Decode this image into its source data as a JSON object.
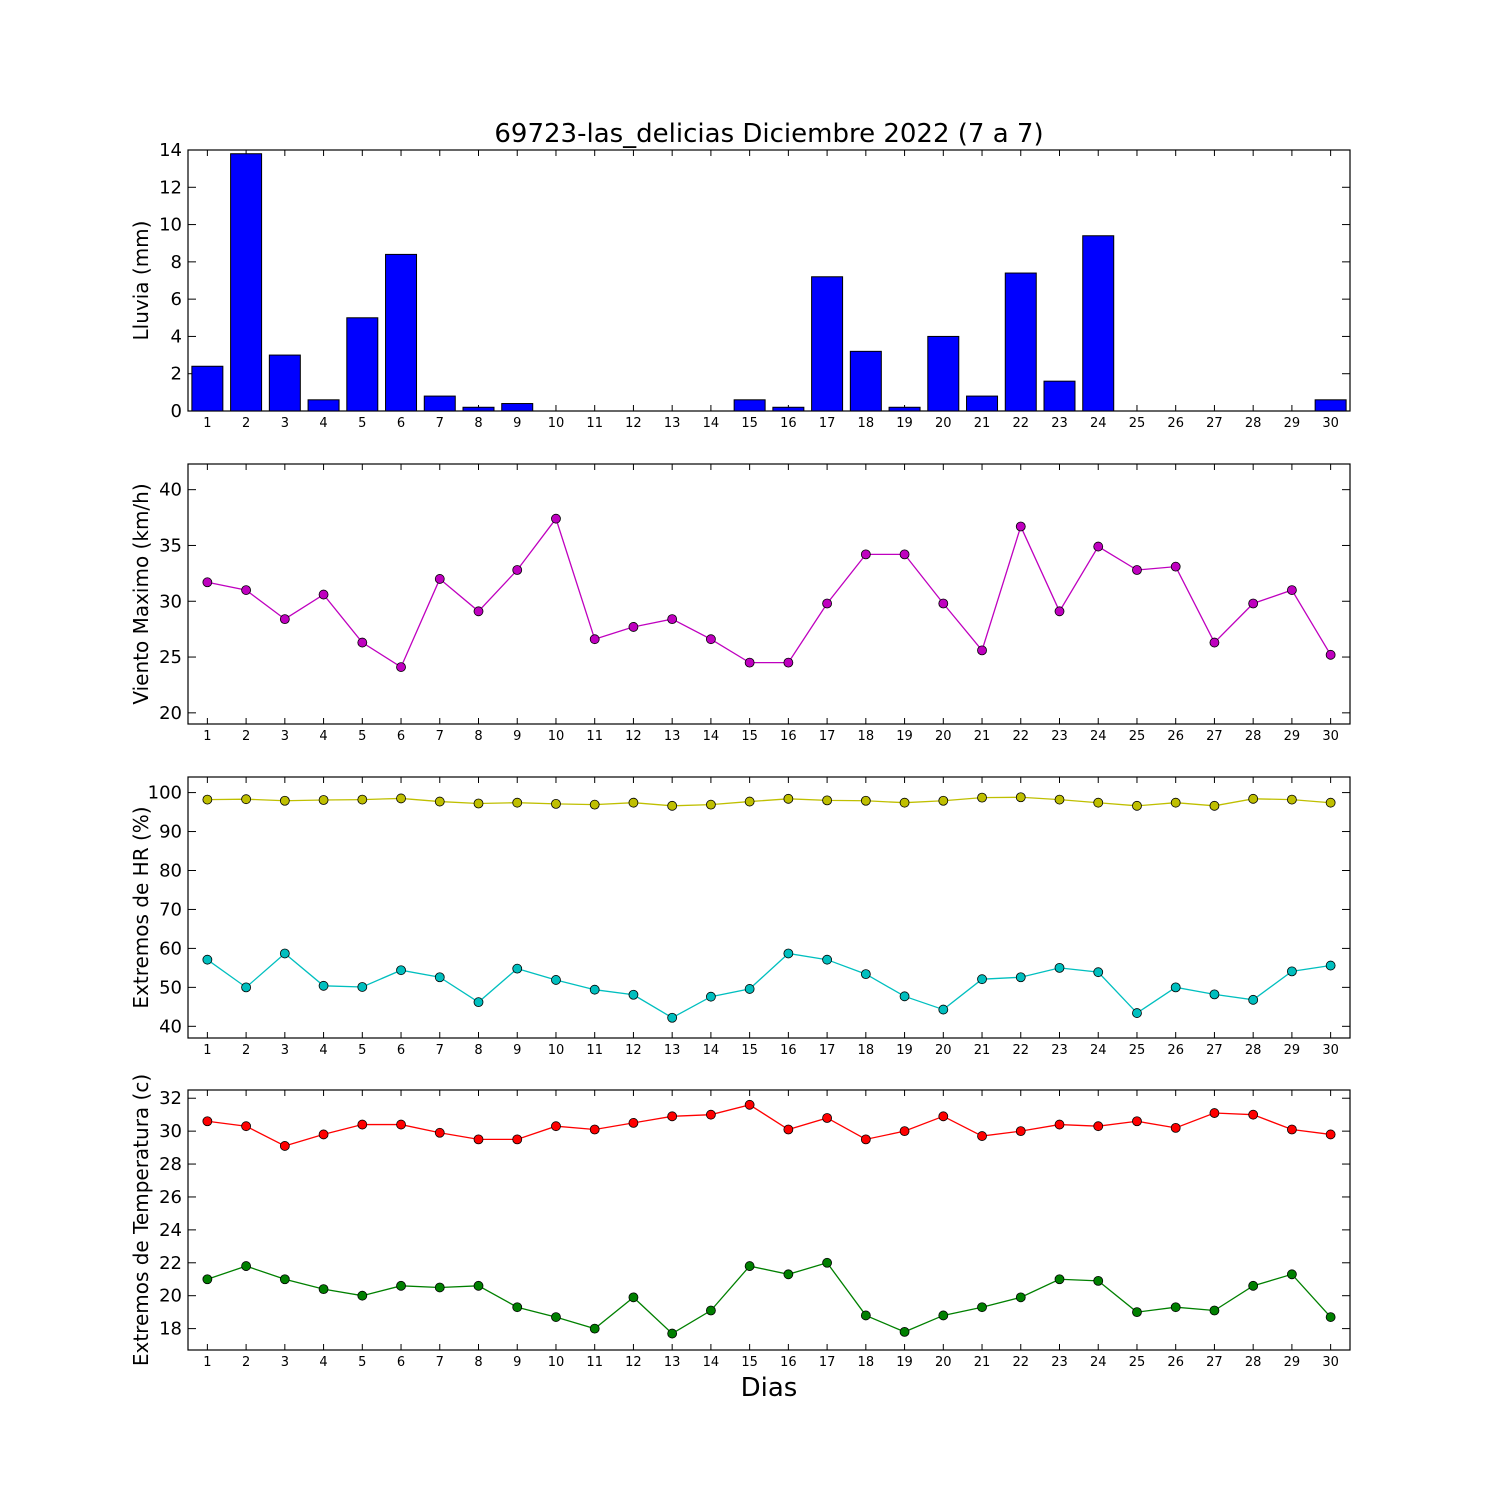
{
  "chart_data": [
    {
      "type": "bar",
      "title": "69723-las_delicias Diciembre 2022  (7 a 7)",
      "xlabel": "",
      "ylabel": "Lluvia (mm)",
      "ylim": [
        0,
        14
      ],
      "yticks": [
        0,
        2,
        4,
        6,
        8,
        10,
        12,
        14
      ],
      "categories": [
        1,
        2,
        3,
        4,
        5,
        6,
        7,
        8,
        9,
        10,
        11,
        12,
        13,
        14,
        15,
        16,
        17,
        18,
        19,
        20,
        21,
        22,
        23,
        24,
        25,
        26,
        27,
        28,
        29,
        30
      ],
      "values": [
        2.4,
        13.8,
        3.0,
        0.6,
        5.0,
        8.4,
        0.8,
        0.2,
        0.4,
        0,
        0,
        0,
        0,
        0,
        0.6,
        0.2,
        7.2,
        3.2,
        0.2,
        4.0,
        0.8,
        7.4,
        1.6,
        9.4,
        0,
        0,
        0,
        0,
        0,
        0.6
      ],
      "color": "#0000ff"
    },
    {
      "type": "line",
      "title": "",
      "xlabel": "",
      "ylabel": "Viento Maximo (km/h)",
      "ylim": [
        19,
        42.3
      ],
      "yticks": [
        20,
        25,
        30,
        35,
        40
      ],
      "x": [
        1,
        2,
        3,
        4,
        5,
        6,
        7,
        8,
        9,
        10,
        11,
        12,
        13,
        14,
        15,
        16,
        17,
        18,
        19,
        20,
        21,
        22,
        23,
        24,
        25,
        26,
        27,
        28,
        29,
        30
      ],
      "series": [
        {
          "values": [
            31.7,
            31.0,
            28.4,
            30.6,
            26.3,
            24.1,
            32.0,
            29.1,
            32.8,
            37.4,
            26.6,
            27.7,
            28.4,
            26.6,
            24.5,
            24.5,
            29.8,
            34.2,
            34.2,
            29.8,
            25.6,
            36.7,
            29.1,
            34.9,
            32.8,
            33.1,
            26.3,
            29.8,
            31.0,
            25.2
          ],
          "color": "#bf00bf"
        }
      ]
    },
    {
      "type": "line",
      "title": "",
      "xlabel": "",
      "ylabel": "Extremos de HR (%)",
      "ylim": [
        37,
        104
      ],
      "yticks": [
        40,
        50,
        60,
        70,
        80,
        90,
        100
      ],
      "x": [
        1,
        2,
        3,
        4,
        5,
        6,
        7,
        8,
        9,
        10,
        11,
        12,
        13,
        14,
        15,
        16,
        17,
        18,
        19,
        20,
        21,
        22,
        23,
        24,
        25,
        26,
        27,
        28,
        29,
        30
      ],
      "series": [
        {
          "values": [
            98.2,
            98.3,
            97.9,
            98.1,
            98.2,
            98.5,
            97.7,
            97.2,
            97.4,
            97.1,
            96.9,
            97.4,
            96.6,
            96.9,
            97.7,
            98.4,
            98.0,
            97.9,
            97.4,
            97.9,
            98.7,
            98.8,
            98.2,
            97.4,
            96.6,
            97.4,
            96.6,
            98.4,
            98.2,
            97.4
          ],
          "color": "#bfbf00"
        },
        {
          "values": [
            57.1,
            50.0,
            58.7,
            50.4,
            50.1,
            54.4,
            52.6,
            46.2,
            54.8,
            51.9,
            49.4,
            48.1,
            42.2,
            47.6,
            49.6,
            58.7,
            57.1,
            53.4,
            47.7,
            44.3,
            52.1,
            52.6,
            55.0,
            53.9,
            43.4,
            50.0,
            48.2,
            46.8,
            54.1,
            55.6
          ],
          "color": "#00bfbf"
        }
      ]
    },
    {
      "type": "line",
      "title": "",
      "xlabel": "Dias",
      "ylabel": "Extremos de Temperatura (c)",
      "ylim": [
        16.7,
        32.5
      ],
      "yticks": [
        18,
        20,
        22,
        24,
        26,
        28,
        30,
        32
      ],
      "x": [
        1,
        2,
        3,
        4,
        5,
        6,
        7,
        8,
        9,
        10,
        11,
        12,
        13,
        14,
        15,
        16,
        17,
        18,
        19,
        20,
        21,
        22,
        23,
        24,
        25,
        26,
        27,
        28,
        29,
        30
      ],
      "series": [
        {
          "values": [
            30.6,
            30.3,
            29.1,
            29.8,
            30.4,
            30.4,
            29.9,
            29.5,
            29.5,
            30.3,
            30.1,
            30.5,
            30.9,
            31.0,
            31.6,
            30.1,
            30.8,
            29.5,
            30.0,
            30.9,
            29.7,
            30.0,
            30.4,
            30.3,
            30.6,
            30.2,
            31.1,
            31.0,
            30.1,
            29.8
          ],
          "color": "#ff0000"
        },
        {
          "values": [
            21.0,
            21.8,
            21.0,
            20.4,
            20.0,
            20.6,
            20.5,
            20.6,
            19.3,
            18.7,
            18.0,
            19.9,
            17.7,
            19.1,
            21.8,
            21.3,
            22.0,
            18.8,
            17.8,
            18.8,
            19.3,
            19.9,
            21.0,
            20.9,
            19.0,
            19.3,
            19.1,
            20.6,
            21.3,
            18.7
          ],
          "color": "#008000"
        }
      ]
    }
  ]
}
